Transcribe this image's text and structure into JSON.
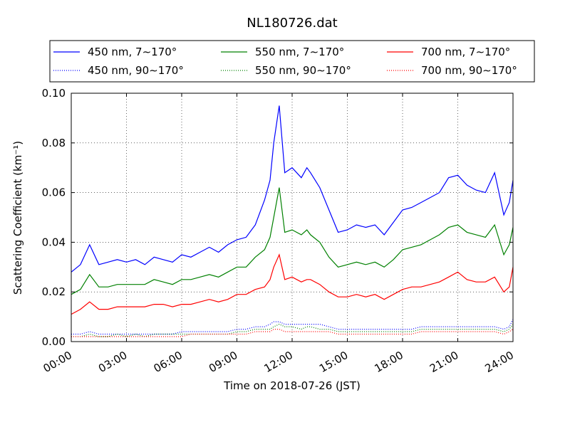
{
  "chart_data": {
    "type": "line",
    "title": "NL180726.dat",
    "xlabel": "Time on 2018-07-26 (JST)",
    "ylabel": "Scattering Coefficient (km⁻¹)",
    "x_unit": "hours (JST)",
    "xlim": [
      0,
      24
    ],
    "ylim": [
      0,
      0.1
    ],
    "x_ticks": [
      0,
      3,
      6,
      9,
      12,
      15,
      18,
      21,
      24
    ],
    "x_tick_labels": [
      "00:00",
      "03:00",
      "06:00",
      "09:00",
      "12:00",
      "15:00",
      "18:00",
      "21:00",
      "24:00"
    ],
    "y_ticks": [
      0,
      0.02,
      0.04,
      0.06,
      0.08,
      0.1
    ],
    "y_tick_labels": [
      "0.00",
      "0.02",
      "0.04",
      "0.06",
      "0.08",
      "0.10"
    ],
    "grid": true,
    "legend_position": "top (above plot, 3 columns)",
    "x": [
      0,
      0.5,
      1,
      1.5,
      2,
      2.5,
      3,
      3.5,
      4,
      4.5,
      5,
      5.5,
      6,
      6.5,
      7,
      7.5,
      8,
      8.5,
      9,
      9.5,
      10,
      10.5,
      10.8,
      11,
      11.3,
      11.6,
      12,
      12.5,
      12.8,
      13,
      13.5,
      14,
      14.5,
      15,
      15.5,
      16,
      16.5,
      17,
      17.5,
      18,
      18.5,
      19,
      19.5,
      20,
      20.5,
      21,
      21.5,
      22,
      22.5,
      23,
      23.5,
      23.8,
      24
    ],
    "series": [
      {
        "name": "450 nm, 7∼170°",
        "color": "#0000ff",
        "style": "solid",
        "values": [
          0.028,
          0.031,
          0.039,
          0.031,
          0.032,
          0.033,
          0.032,
          0.033,
          0.031,
          0.034,
          0.033,
          0.032,
          0.035,
          0.034,
          0.036,
          0.038,
          0.036,
          0.039,
          0.041,
          0.042,
          0.047,
          0.057,
          0.065,
          0.08,
          0.095,
          0.068,
          0.07,
          0.066,
          0.07,
          0.068,
          0.062,
          0.053,
          0.044,
          0.045,
          0.047,
          0.046,
          0.047,
          0.043,
          0.048,
          0.053,
          0.054,
          0.056,
          0.058,
          0.06,
          0.066,
          0.067,
          0.063,
          0.061,
          0.06,
          0.068,
          0.051,
          0.056,
          0.065
        ]
      },
      {
        "name": "550 nm, 7∼170°",
        "color": "#008000",
        "style": "solid",
        "values": [
          0.019,
          0.021,
          0.027,
          0.022,
          0.022,
          0.023,
          0.023,
          0.023,
          0.023,
          0.025,
          0.024,
          0.023,
          0.025,
          0.025,
          0.026,
          0.027,
          0.026,
          0.028,
          0.03,
          0.03,
          0.034,
          0.037,
          0.042,
          0.05,
          0.062,
          0.044,
          0.045,
          0.043,
          0.045,
          0.043,
          0.04,
          0.034,
          0.03,
          0.031,
          0.032,
          0.031,
          0.032,
          0.03,
          0.033,
          0.037,
          0.038,
          0.039,
          0.041,
          0.043,
          0.046,
          0.047,
          0.044,
          0.043,
          0.042,
          0.047,
          0.035,
          0.039,
          0.046
        ]
      },
      {
        "name": "700 nm, 7∼170°",
        "color": "#ff0000",
        "style": "solid",
        "values": [
          0.011,
          0.013,
          0.016,
          0.013,
          0.013,
          0.014,
          0.014,
          0.014,
          0.014,
          0.015,
          0.015,
          0.014,
          0.015,
          0.015,
          0.016,
          0.017,
          0.016,
          0.017,
          0.019,
          0.019,
          0.021,
          0.022,
          0.025,
          0.03,
          0.035,
          0.025,
          0.026,
          0.024,
          0.025,
          0.025,
          0.023,
          0.02,
          0.018,
          0.018,
          0.019,
          0.018,
          0.019,
          0.017,
          0.019,
          0.021,
          0.022,
          0.022,
          0.023,
          0.024,
          0.026,
          0.028,
          0.025,
          0.024,
          0.024,
          0.026,
          0.02,
          0.022,
          0.03
        ]
      },
      {
        "name": "450 nm, 90∼170°",
        "color": "#0000ff",
        "style": "dotted",
        "values": [
          0.003,
          0.003,
          0.004,
          0.003,
          0.003,
          0.003,
          0.003,
          0.003,
          0.003,
          0.003,
          0.003,
          0.003,
          0.004,
          0.004,
          0.004,
          0.004,
          0.004,
          0.004,
          0.005,
          0.005,
          0.006,
          0.006,
          0.007,
          0.008,
          0.008,
          0.007,
          0.007,
          0.007,
          0.007,
          0.007,
          0.007,
          0.006,
          0.005,
          0.005,
          0.005,
          0.005,
          0.005,
          0.005,
          0.005,
          0.005,
          0.005,
          0.006,
          0.006,
          0.006,
          0.006,
          0.006,
          0.006,
          0.006,
          0.006,
          0.006,
          0.005,
          0.006,
          0.009
        ]
      },
      {
        "name": "550 nm, 90∼170°",
        "color": "#008000",
        "style": "dotted",
        "values": [
          0.002,
          0.002,
          0.003,
          0.002,
          0.002,
          0.003,
          0.002,
          0.003,
          0.002,
          0.003,
          0.003,
          0.003,
          0.003,
          0.003,
          0.003,
          0.003,
          0.003,
          0.003,
          0.004,
          0.004,
          0.005,
          0.005,
          0.005,
          0.006,
          0.007,
          0.006,
          0.006,
          0.005,
          0.006,
          0.006,
          0.005,
          0.005,
          0.004,
          0.004,
          0.004,
          0.004,
          0.004,
          0.004,
          0.004,
          0.004,
          0.004,
          0.005,
          0.005,
          0.005,
          0.005,
          0.005,
          0.005,
          0.005,
          0.005,
          0.005,
          0.004,
          0.005,
          0.007
        ]
      },
      {
        "name": "700 nm, 90∼170°",
        "color": "#ff0000",
        "style": "dotted",
        "values": [
          0.002,
          0.002,
          0.002,
          0.002,
          0.002,
          0.002,
          0.002,
          0.002,
          0.002,
          0.002,
          0.002,
          0.002,
          0.002,
          0.003,
          0.003,
          0.003,
          0.003,
          0.003,
          0.003,
          0.003,
          0.004,
          0.004,
          0.004,
          0.005,
          0.005,
          0.004,
          0.004,
          0.004,
          0.004,
          0.004,
          0.004,
          0.004,
          0.003,
          0.003,
          0.003,
          0.003,
          0.003,
          0.003,
          0.003,
          0.003,
          0.003,
          0.004,
          0.004,
          0.004,
          0.004,
          0.004,
          0.004,
          0.004,
          0.004,
          0.004,
          0.003,
          0.004,
          0.005
        ]
      }
    ]
  }
}
